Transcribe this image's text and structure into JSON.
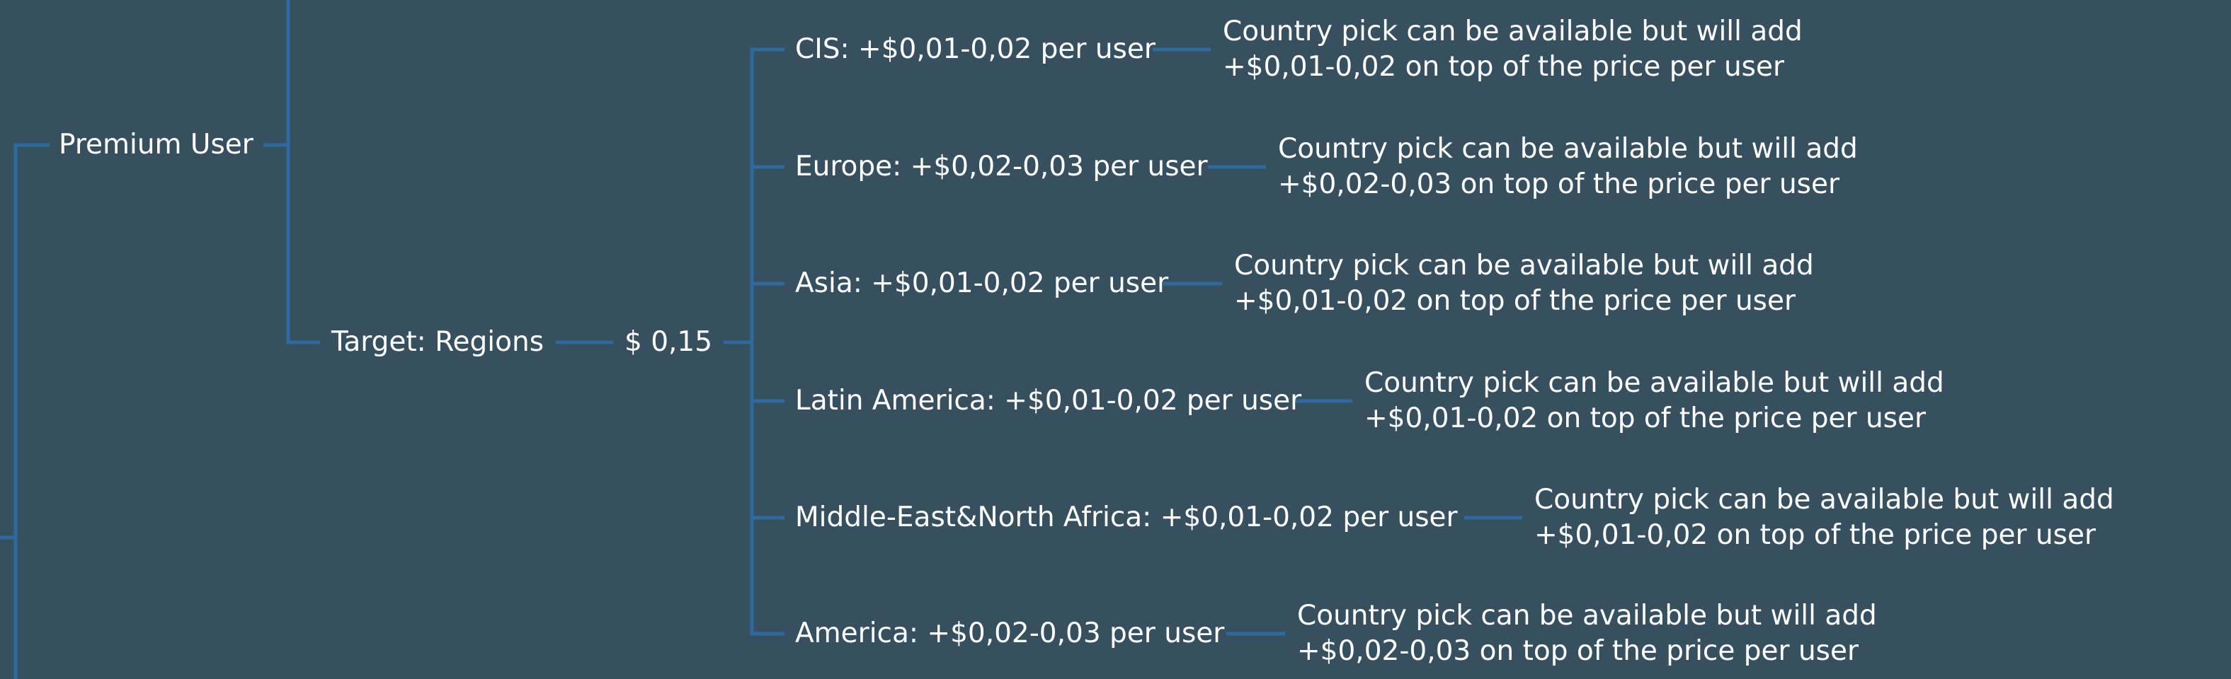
{
  "colors": {
    "background": "#37505F",
    "connector": "#2D6A9F",
    "text": "#FFFFFF"
  },
  "tree": {
    "root": {
      "label": "Premium User"
    },
    "target": {
      "label": "Target: Regions"
    },
    "price": {
      "label": "$ 0,15"
    },
    "regions": [
      {
        "label": "CIS: +$0,01-0,02 per user",
        "note_line1": "Country pick can be available but will add",
        "note_line2": "+$0,01-0,02 on top of the price per user"
      },
      {
        "label": "Europe: +$0,02-0,03 per user",
        "note_line1": "Country pick can be available but will add",
        "note_line2": "+$0,02-0,03 on top of the price per user"
      },
      {
        "label": "Asia: +$0,01-0,02 per user",
        "note_line1": "Country pick can be available but will add",
        "note_line2": "+$0,01-0,02 on top of the price per user"
      },
      {
        "label": "Latin America: +$0,01-0,02 per user",
        "note_line1": "Country pick can be available but will add",
        "note_line2": "+$0,01-0,02 on top of the price per user"
      },
      {
        "label": "Middle-East&North Africa: +$0,01-0,02 per user",
        "note_line1": "Country pick can be available but will add",
        "note_line2": "+$0,01-0,02 on top of the price per user"
      },
      {
        "label": "America: +$0,02-0,03 per user",
        "note_line1": "Country pick can be available but will add",
        "note_line2": "+$0,02-0,03 on top of the price per user"
      }
    ]
  }
}
